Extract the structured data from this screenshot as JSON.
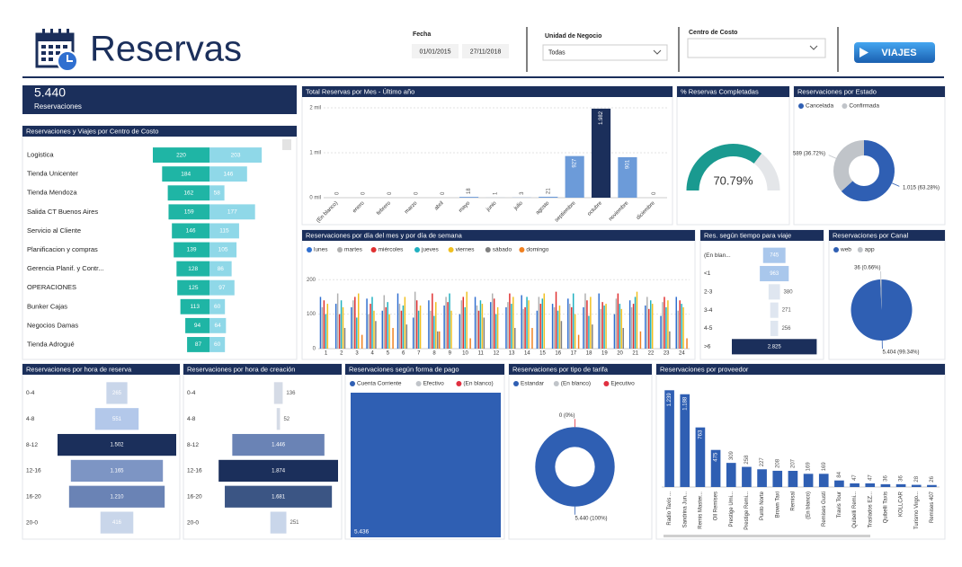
{
  "header": {
    "title": "Reservas",
    "filters": [
      {
        "label": "Fecha",
        "values": [
          "01/01/2015",
          "27/11/2018"
        ]
      },
      {
        "label": "Unidad de Negocio",
        "values": [
          "Todas"
        ]
      },
      {
        "label": "Centro de Costo",
        "values": []
      }
    ],
    "button": "VIAJES"
  },
  "kpi": {
    "value": "5.440",
    "label": "Reservaciones"
  },
  "chart_data": [
    {
      "type": "butterfly",
      "title": "Reservaciones y Viajes por Centro de Costo",
      "categories": [
        "Logistica",
        "Tienda Unicenter",
        "Tienda Mendoza",
        "Salida CT Buenos Aires",
        "Servicio al Cliente",
        "Planificacion y compras",
        "Gerencia Planif. y Contr...",
        "OPERACIONES",
        "Bunker Cajas",
        "Negocios Damas",
        "Tienda Adrogué"
      ],
      "series": [
        {
          "color": "#1fb5a5",
          "values": [
            220,
            184,
            162,
            159,
            146,
            139,
            128,
            125,
            113,
            94,
            87
          ]
        },
        {
          "color": "#8fd8e8",
          "values": [
            203,
            146,
            58,
            177,
            115,
            105,
            86,
            97,
            60,
            64,
            60
          ]
        }
      ]
    },
    {
      "type": "bar",
      "title": "Total Reservas por Mes - Último año",
      "categories": [
        "(En blanco)",
        "enero",
        "febrero",
        "marzo",
        "abril",
        "mayo",
        "junio",
        "julio",
        "agosto",
        "septiembre",
        "octubre",
        "noviembre",
        "diciembre"
      ],
      "values": [
        0,
        0,
        0,
        0,
        0,
        18,
        1,
        3,
        21,
        927,
        1982,
        901,
        0
      ],
      "value_labels": [
        "0",
        "0",
        "0",
        "0",
        "0",
        "18",
        "1",
        "3",
        "21",
        "927",
        "1.982",
        "901",
        "0"
      ],
      "colors": [
        "#6c9bd9",
        "#6c9bd9",
        "#6c9bd9",
        "#6c9bd9",
        "#6c9bd9",
        "#6c9bd9",
        "#6c9bd9",
        "#6c9bd9",
        "#6c9bd9",
        "#6c9bd9",
        "#1b2f5b",
        "#6c9bd9",
        "#6c9bd9"
      ],
      "ylim": [
        0,
        2000
      ],
      "yticks": [
        {
          "value": 0,
          "label": "0 mil"
        },
        {
          "value": 1000,
          "label": "1 mil"
        },
        {
          "value": 2000,
          "label": "2 mil"
        }
      ],
      "grid": true
    },
    {
      "type": "gauge",
      "title": "% Reservas Completadas",
      "values": [
        70.79
      ],
      "value_labels": [
        "70.79%"
      ],
      "ylim": [
        0,
        100
      ],
      "colors": [
        "#1a9a90",
        "#e4e6e9"
      ]
    },
    {
      "type": "donut",
      "title": "Reservaciones por Estado",
      "categories": [
        "Cancelada",
        "Confirmada"
      ],
      "values": [
        1015,
        589
      ],
      "value_labels": [
        "1.015 (63.28%)",
        "589 (36.72%)"
      ],
      "colors": [
        "#2f5fb3",
        "#c0c4c9"
      ],
      "legend": "top-left"
    },
    {
      "type": "bar",
      "title": "Reservaciones por día del mes y por día de semana",
      "categories": [
        1,
        2,
        3,
        4,
        5,
        6,
        7,
        8,
        9,
        10,
        11,
        12,
        13,
        14,
        15,
        16,
        17,
        18,
        19,
        20,
        21,
        22,
        23,
        24
      ],
      "series": [
        {
          "name": "lunes",
          "color": "#2f6fd0",
          "values": [
            150,
            130,
            120,
            145,
            110,
            160,
            90,
            140,
            125,
            100,
            150,
            135,
            120,
            155,
            110,
            130,
            145,
            120,
            160,
            100,
            140,
            125,
            95,
            150
          ]
        },
        {
          "name": "martes",
          "color": "#b0b0b0",
          "values": [
            120,
            160,
            140,
            100,
            155,
            130,
            165,
            110,
            150,
            140,
            125,
            160,
            135,
            115,
            150,
            120,
            130,
            160,
            115,
            145,
            120,
            150,
            135,
            110
          ]
        },
        {
          "name": "miércoles",
          "color": "#e03030",
          "values": [
            140,
            100,
            150,
            130,
            120,
            110,
            140,
            160,
            135,
            150,
            110,
            145,
            160,
            120,
            130,
            165,
            120,
            140,
            135,
            160,
            130,
            115,
            150,
            140
          ]
        },
        {
          "name": "jueves",
          "color": "#20b0c0",
          "values": [
            100,
            140,
            90,
            150,
            135,
            125,
            110,
            95,
            160,
            120,
            140,
            100,
            130,
            150,
            145,
            110,
            160,
            95,
            125,
            130,
            150,
            140,
            120,
            130
          ]
        },
        {
          "name": "viernes",
          "color": "#f0c020",
          "values": [
            130,
            120,
            160,
            110,
            100,
            150,
            125,
            135,
            110,
            165,
            130,
            120,
            150,
            140,
            160,
            125,
            100,
            150,
            130,
            115,
            165,
            130,
            140,
            120
          ]
        },
        {
          "name": "sábado",
          "color": "#808080",
          "values": [
            null,
            60,
            null,
            80,
            null,
            70,
            null,
            50,
            null,
            null,
            90,
            null,
            60,
            null,
            null,
            80,
            null,
            70,
            null,
            60,
            null,
            null,
            50,
            null
          ]
        },
        {
          "name": "domingo",
          "color": "#f08020",
          "values": [
            null,
            null,
            40,
            null,
            60,
            null,
            null,
            50,
            null,
            30,
            null,
            null,
            null,
            60,
            null,
            null,
            40,
            null,
            null,
            null,
            50,
            null,
            null,
            30
          ]
        }
      ],
      "ylim": [
        0,
        250
      ],
      "yticks": [
        0,
        100,
        200
      ],
      "grid": true,
      "legend": "top-left"
    },
    {
      "type": "funnel",
      "title": "Res. según tiempo para viaje",
      "categories": [
        "(En blan...",
        "<1",
        "2-3",
        "3-4",
        "4-5",
        ">6"
      ],
      "values": [
        745,
        963,
        380,
        271,
        256,
        2825
      ],
      "value_labels": [
        "745",
        "963",
        "380",
        "271",
        "256",
        "2.825"
      ],
      "colors": [
        "#a9c7ec",
        "#a9c7ec",
        "#dfe6f0",
        "#dfe6f0",
        "#dfe6f0",
        "#1b2f5b"
      ]
    },
    {
      "type": "pie",
      "title": "Reservaciones por Canal",
      "categories": [
        "web",
        "app"
      ],
      "values": [
        5404,
        36
      ],
      "value_labels": [
        "5.404 (99.34%)",
        "36 (0.66%)"
      ],
      "colors": [
        "#2f5fb3",
        "#c0c4c9"
      ],
      "legend": "top-left"
    },
    {
      "type": "funnel",
      "title": "Reservaciones por hora de reserva",
      "categories": [
        "0-4",
        "4-8",
        "8-12",
        "12-16",
        "16-20",
        "20-0"
      ],
      "values": [
        265,
        551,
        1502,
        1165,
        1210,
        416
      ],
      "value_labels": [
        "265",
        "551",
        "1.502",
        "1.165",
        "1.210",
        "416"
      ],
      "colors": [
        "#c9d6ea",
        "#b3c8ea",
        "#1b2f5b",
        "#7d95c4",
        "#6a83b5",
        "#c9d6ea"
      ]
    },
    {
      "type": "funnel",
      "title": "Reservaciones por hora de creación",
      "categories": [
        "0-4",
        "4-8",
        "8-12",
        "12-16",
        "16-20",
        "20-0"
      ],
      "values": [
        136,
        52,
        1446,
        1874,
        1681,
        251
      ],
      "value_labels": [
        "136",
        "52",
        "1.446",
        "1.874",
        "1.681",
        "251"
      ],
      "colors": [
        "#d5dbe6",
        "#d5dbe6",
        "#6a83b5",
        "#1b2f5b",
        "#3b5584",
        "#c9d6ea"
      ]
    },
    {
      "type": "treemap",
      "title": "Reservaciones según forma de pago",
      "categories": [
        "Cuenta Corriente",
        "Efectivo",
        "(En blanco)"
      ],
      "values": [
        5436,
        null,
        null
      ],
      "value_labels": [
        "5.436",
        null,
        null
      ],
      "colors": [
        "#2f5fb3",
        "#c0c4c9",
        "#e03040"
      ],
      "legend": "top-left"
    },
    {
      "type": "donut",
      "title": "Reservaciones por tipo de tarifa",
      "categories": [
        "Estandar",
        "(En blanco)",
        "Ejecutivo"
      ],
      "values": [
        5440,
        null,
        0
      ],
      "value_labels": [
        "5.440 (100%)",
        null,
        "0 (0%)"
      ],
      "colors": [
        "#2f5fb3",
        "#c0c4c9",
        "#e03040"
      ],
      "legend": "top-left"
    },
    {
      "type": "bar",
      "title": "Reservaciones por proveedor",
      "categories": [
        "Radio Taxis ...",
        "Sandrina Jun...",
        "Remis Master...",
        "Oll Remises",
        "Prestige Umi...",
        "Prestige Remi...",
        "Punto Norte",
        "Brown Taxi",
        "Remisal",
        "(En blanco)",
        "Remises Gusti",
        "Travis Tour",
        "Quibelli Remi...",
        "Traslados EZ...",
        "Quibelli Taxis",
        "KOLLCAR",
        "Turismo Virgo...",
        "Remises 407"
      ],
      "values": [
        1239,
        1188,
        763,
        475,
        309,
        258,
        227,
        208,
        207,
        169,
        169,
        84,
        47,
        47,
        36,
        36,
        28,
        26
      ],
      "value_labels": [
        "1.239",
        "1.188",
        "763",
        "475",
        "309",
        "258",
        "227",
        "208",
        "207",
        "169",
        "169",
        "84",
        "47",
        "47",
        "36",
        "36",
        "28",
        "26"
      ],
      "color": "#2f5fb3",
      "ylim": [
        0,
        1300
      ]
    }
  ]
}
